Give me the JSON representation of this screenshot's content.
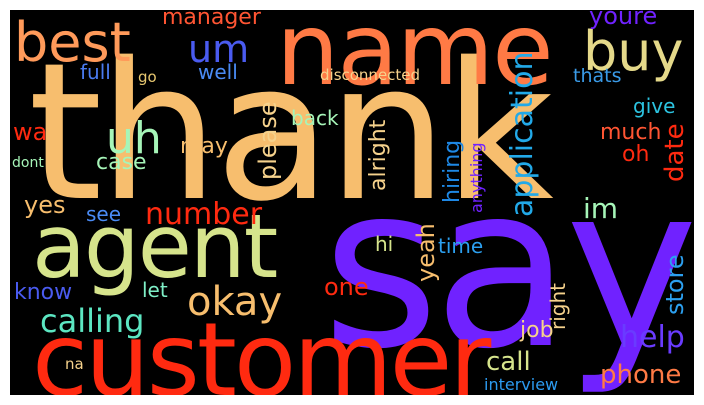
{
  "words": {
    "thank": {
      "text": "thank",
      "color": "#F7BE6E"
    },
    "say": {
      "text": "say",
      "color": "#7022FF"
    },
    "customer": {
      "text": "customer",
      "color": "#FF2A10"
    },
    "agent": {
      "text": "agent",
      "color": "#D6E48C"
    },
    "name": {
      "text": "name",
      "color": "#FF7A45"
    },
    "best": {
      "text": "best",
      "color": "#FF9A5A"
    },
    "buy": {
      "text": "buy",
      "color": "#E5D98A"
    },
    "um": {
      "text": "um",
      "color": "#4A5BF0"
    },
    "uh": {
      "text": "uh",
      "color": "#A6F5B8"
    },
    "okay": {
      "text": "okay",
      "color": "#F7BE6E"
    },
    "number": {
      "text": "number",
      "color": "#FF2A10"
    },
    "calling": {
      "text": "calling",
      "color": "#5CE6C2"
    },
    "application": {
      "text": "application",
      "color": "#22A9E8"
    },
    "manager": {
      "text": "manager",
      "color": "#FF5533"
    },
    "youre": {
      "text": "youre",
      "color": "#7022FF"
    },
    "full": {
      "text": "full",
      "color": "#4A7BF0"
    },
    "well": {
      "text": "well",
      "color": "#4A8BF5"
    },
    "go": {
      "text": "go",
      "color": "#E8C870"
    },
    "disconnected": {
      "text": "disconnected",
      "color": "#F6D28C"
    },
    "thats": {
      "text": "thats",
      "color": "#3A9BE8"
    },
    "give": {
      "text": "give",
      "color": "#2CC3E0"
    },
    "wa": {
      "text": "wa",
      "color": "#FF2A10"
    },
    "case": {
      "text": "case",
      "color": "#A6F5B8"
    },
    "dont": {
      "text": "dont",
      "color": "#A6F5B8"
    },
    "back": {
      "text": "back",
      "color": "#A6F5B8"
    },
    "may": {
      "text": "may",
      "color": "#F7BE6E"
    },
    "please": {
      "text": "please",
      "color": "#F6D28C"
    },
    "alright": {
      "text": "alright",
      "color": "#F6D28C"
    },
    "hiring": {
      "text": "hiring",
      "color": "#1E88E5"
    },
    "anything": {
      "text": "anything",
      "color": "#7022FF"
    },
    "much": {
      "text": "much",
      "color": "#FF5533"
    },
    "oh": {
      "text": "oh",
      "color": "#FF2A10"
    },
    "date": {
      "text": "date",
      "color": "#FF2A10"
    },
    "yes": {
      "text": "yes",
      "color": "#F7BE6E"
    },
    "see": {
      "text": "see",
      "color": "#4A8BF5"
    },
    "im": {
      "text": "im",
      "color": "#A6F5B8"
    },
    "yeah": {
      "text": "yeah",
      "color": "#F7BE6E"
    },
    "hi": {
      "text": "hi",
      "color": "#D6E48C"
    },
    "time": {
      "text": "time",
      "color": "#2CA0F0"
    },
    "store": {
      "text": "store",
      "color": "#2CA0F0"
    },
    "know": {
      "text": "know",
      "color": "#4A5BF0"
    },
    "let": {
      "text": "let",
      "color": "#7FF0C8"
    },
    "one": {
      "text": "one",
      "color": "#FF2A10"
    },
    "right": {
      "text": "right",
      "color": "#F6D28C"
    },
    "job": {
      "text": "job",
      "color": "#F6D28C"
    },
    "help": {
      "text": "help",
      "color": "#6A3BFF"
    },
    "call": {
      "text": "call",
      "color": "#D6E48C"
    },
    "phone": {
      "text": "phone",
      "color": "#FF7A45"
    },
    "na": {
      "text": "na",
      "color": "#F6D28C"
    },
    "interview": {
      "text": "interview",
      "color": "#2C9BF0"
    }
  }
}
